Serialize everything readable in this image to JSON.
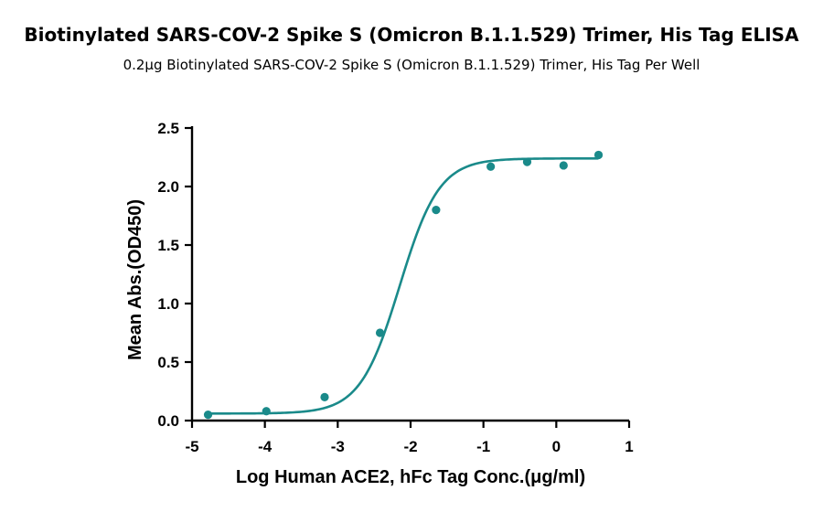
{
  "header": {
    "title": "Biotinylated SARS-COV-2 Spike S (Omicron B.1.1.529) Trimer, His Tag ELISA",
    "subtitle": "0.2μg Biotinylated SARS-COV-2 Spike S (Omicron B.1.1.529) Trimer, His Tag Per Well"
  },
  "chart_data": {
    "type": "scatter",
    "title": "Biotinylated SARS-COV-2 Spike S (Omicron B.1.1.529) Trimer, His Tag ELISA",
    "subtitle": "0.2μg Biotinylated SARS-COV-2 Spike S (Omicron B.1.1.529) Trimer, His Tag Per Well",
    "xlabel": "Log Human ACE2, hFc Tag Conc.(μg/ml)",
    "ylabel": "Mean Abs.(OD450)",
    "xlim": [
      -5,
      1
    ],
    "ylim": [
      0,
      2.5
    ],
    "xticks": [
      -5,
      -4,
      -3,
      -2,
      -1,
      0,
      1
    ],
    "yticks": [
      0.0,
      0.5,
      1.0,
      1.5,
      2.0,
      2.5
    ],
    "xtick_labels": [
      "-5",
      "-4",
      "-3",
      "-2",
      "-1",
      "0",
      "1"
    ],
    "ytick_labels": [
      "0.0",
      "0.5",
      "1.0",
      "1.5",
      "2.0",
      "2.5"
    ],
    "color": "#1a8a8a",
    "series": [
      {
        "x": [
          -4.78,
          -3.98,
          -3.18,
          -2.42,
          -1.65,
          -0.9,
          -0.4,
          0.1,
          0.58
        ],
        "y": [
          0.05,
          0.08,
          0.2,
          0.75,
          1.8,
          2.17,
          2.21,
          2.18,
          2.27
        ]
      }
    ],
    "fit_curve": {
      "model": "4PL",
      "bottom": 0.06,
      "top": 2.24,
      "log_ec50": -2.15,
      "hill_slope": 1.6
    },
    "grid": false,
    "legend": "none"
  }
}
